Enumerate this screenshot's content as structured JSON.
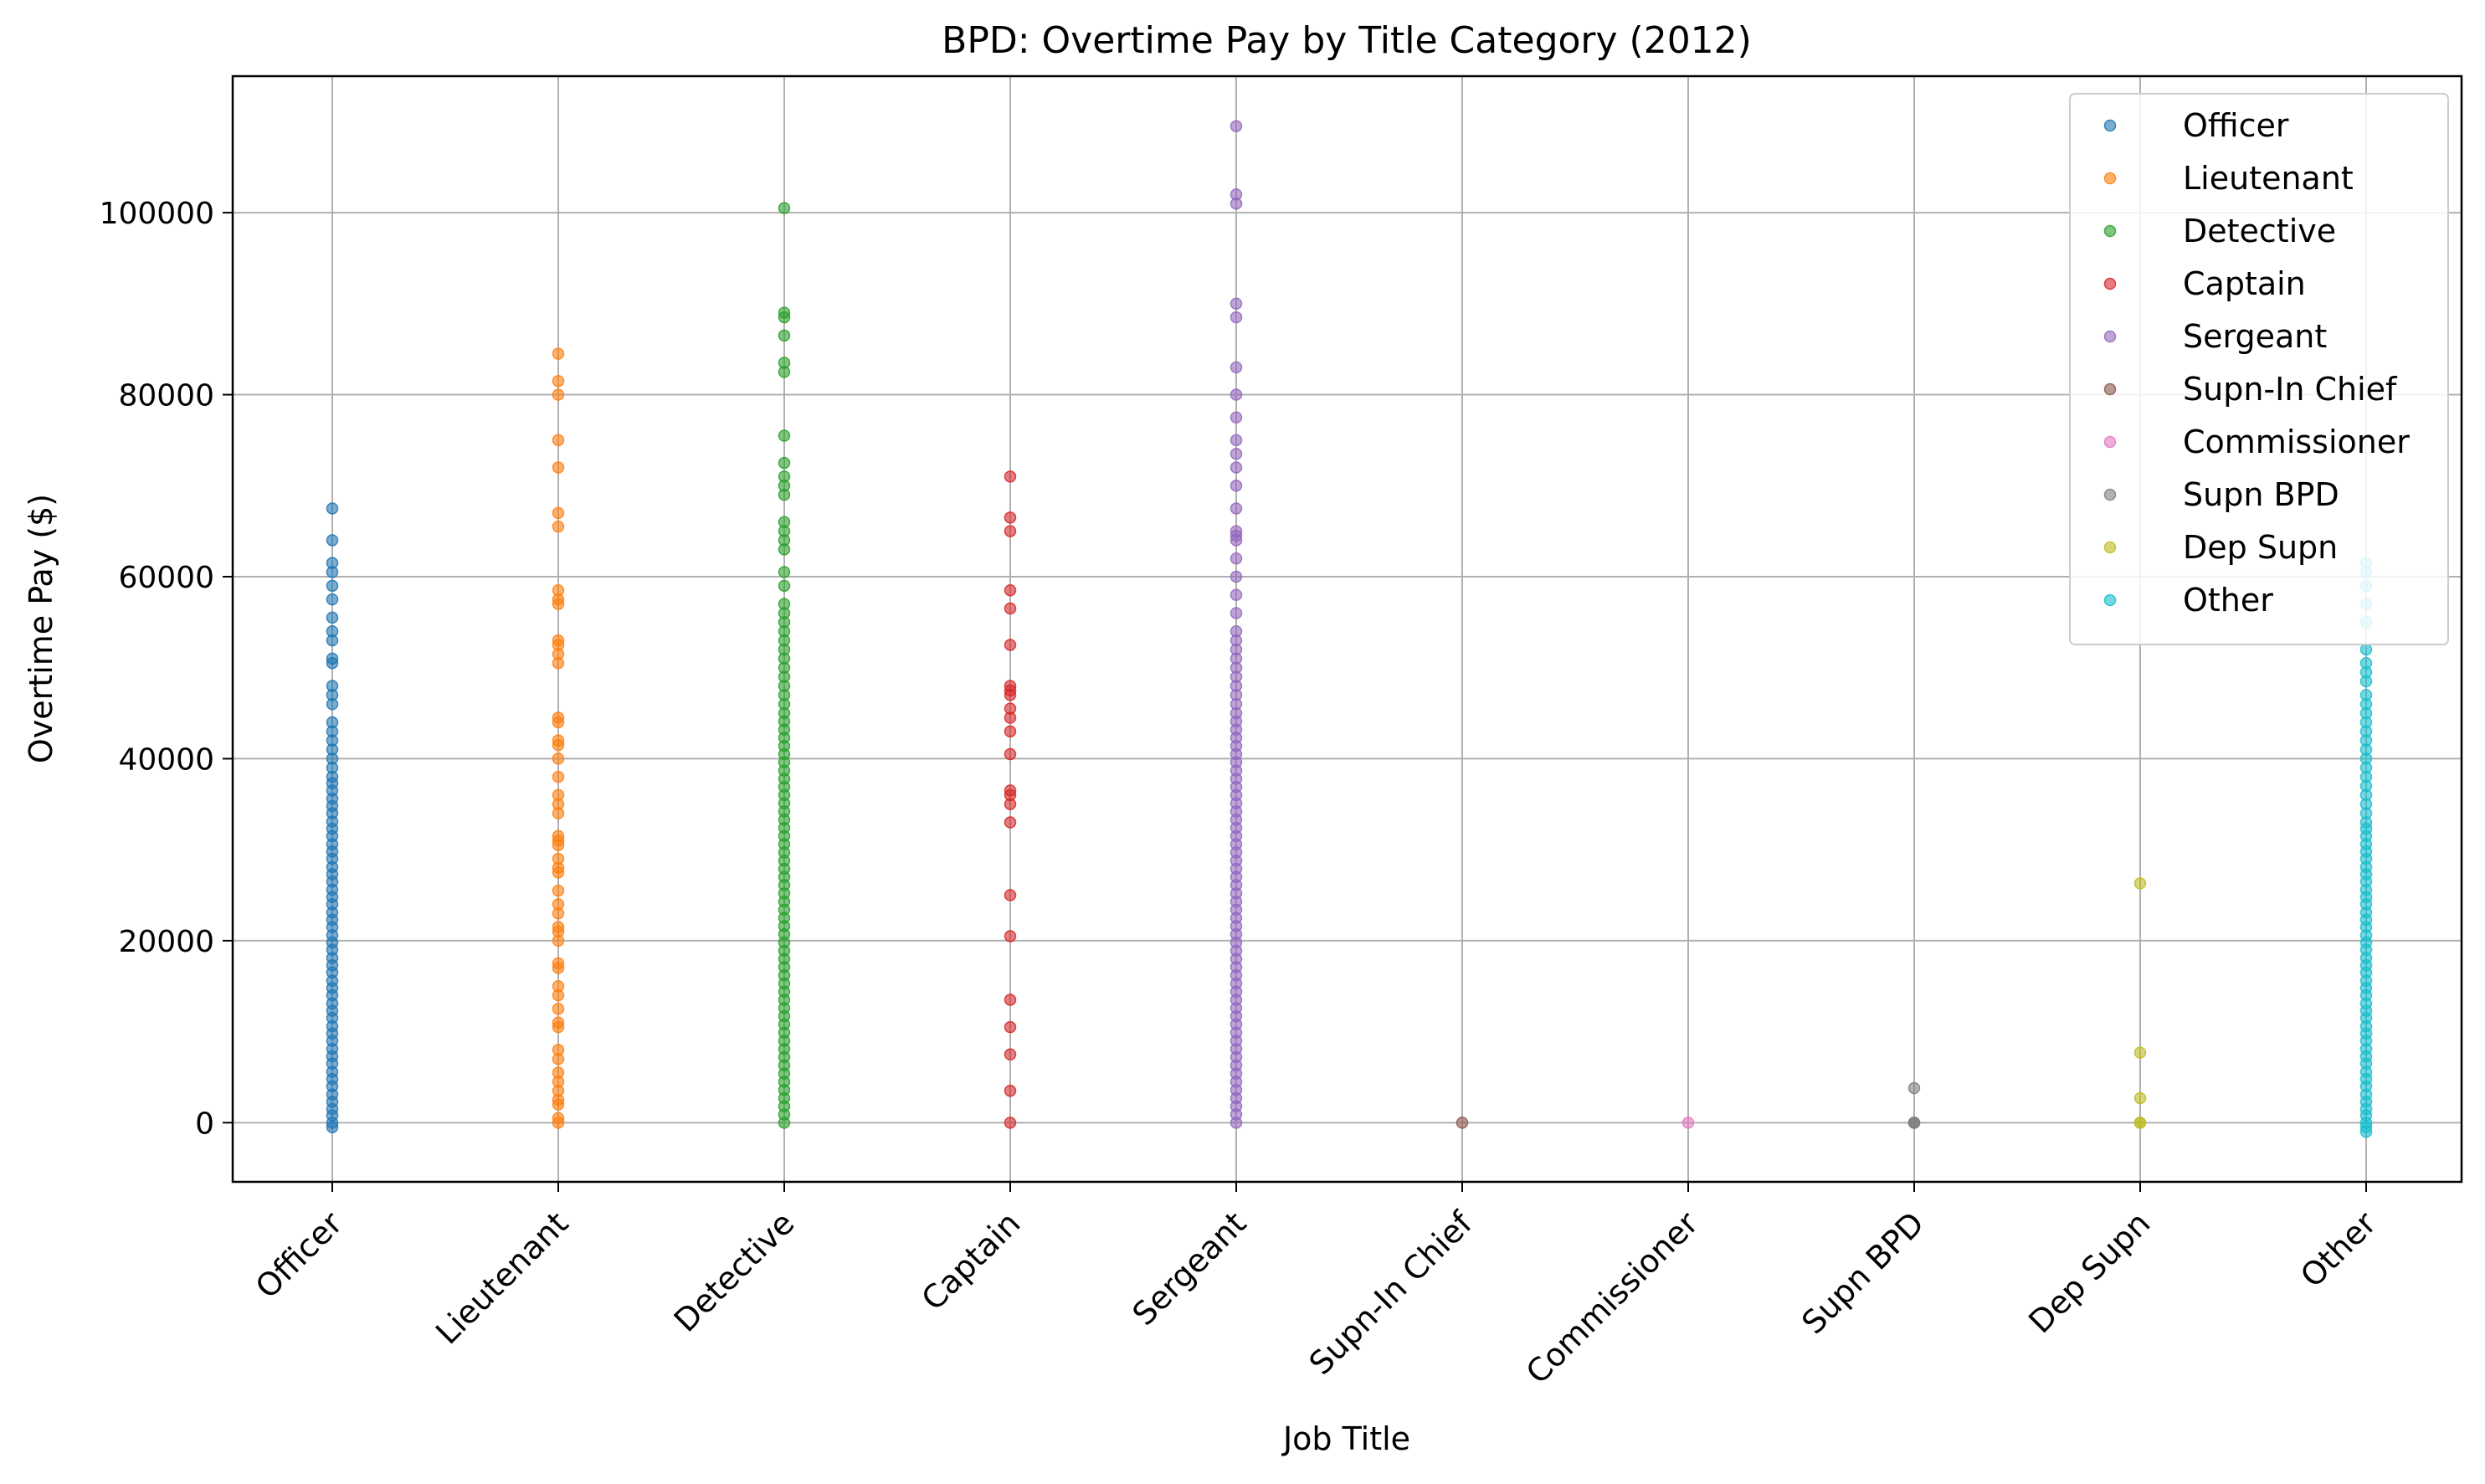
{
  "chart_data": {
    "type": "scatter",
    "title": "BPD: Overtime Pay by Title Category (2012)",
    "xlabel": "Job Title",
    "ylabel": "Overtime Pay ($)",
    "ylim": [
      -6500,
      115000
    ],
    "yticks": [
      0,
      20000,
      40000,
      60000,
      80000,
      100000
    ],
    "grid": true,
    "legend_position": "top-right",
    "categories": [
      "Officer",
      "Lieutenant",
      "Detective",
      "Captain",
      "Sergeant",
      "Supn-In Chief",
      "Commissioner",
      "Supn BPD",
      "Dep Supn",
      "Other"
    ],
    "series": [
      {
        "name": "Officer",
        "color": "#1f77b4",
        "values": [
          -500,
          0,
          800,
          1500,
          2300,
          3100,
          4000,
          4800,
          5600,
          6500,
          7300,
          8100,
          9000,
          9800,
          10600,
          11500,
          12300,
          13100,
          14000,
          14800,
          15600,
          16500,
          17300,
          18100,
          19000,
          19800,
          20600,
          21500,
          22300,
          23100,
          24000,
          24800,
          25600,
          26500,
          27300,
          28100,
          29000,
          29800,
          30600,
          31500,
          32300,
          33100,
          34000,
          34800,
          35600,
          36500,
          37300,
          38000,
          39000,
          40000,
          41000,
          42000,
          43000,
          44000,
          46000,
          47000,
          48000,
          50500,
          51000,
          53000,
          54000,
          55500,
          57500,
          59000,
          60500,
          61500,
          64000,
          67500
        ]
      },
      {
        "name": "Lieutenant",
        "color": "#ff7f0e",
        "values": [
          0,
          500,
          2000,
          2500,
          3500,
          4500,
          5500,
          7000,
          8000,
          10500,
          11000,
          12500,
          14000,
          15000,
          17000,
          17500,
          20000,
          21000,
          21500,
          23000,
          24000,
          25500,
          27500,
          28000,
          29000,
          30500,
          31000,
          31500,
          34000,
          35000,
          36000,
          38000,
          40000,
          41500,
          42000,
          44000,
          44500,
          50500,
          51500,
          52500,
          53000,
          57000,
          57500,
          58500,
          65500,
          67000,
          72000,
          75000,
          80000,
          81500,
          84500
        ]
      },
      {
        "name": "Detective",
        "color": "#2ca02c",
        "values": [
          0,
          900,
          1800,
          2700,
          3600,
          4500,
          5400,
          6300,
          7200,
          8100,
          9000,
          9900,
          10800,
          11700,
          12600,
          13500,
          14400,
          15300,
          16200,
          17100,
          18000,
          18900,
          19800,
          20700,
          21600,
          22500,
          23400,
          24300,
          25200,
          26100,
          27000,
          27900,
          28800,
          29700,
          30600,
          31500,
          32400,
          33300,
          34200,
          35100,
          36000,
          36900,
          37800,
          38700,
          39600,
          40500,
          41400,
          42300,
          43200,
          44100,
          45000,
          46000,
          47000,
          48000,
          49000,
          50000,
          51000,
          52000,
          53000,
          54000,
          55000,
          56000,
          57000,
          59000,
          60500,
          63000,
          64000,
          65000,
          66000,
          69000,
          70000,
          71000,
          72500,
          75500,
          82500,
          83500,
          86500,
          88500,
          89000,
          100500
        ]
      },
      {
        "name": "Captain",
        "color": "#d62728",
        "values": [
          0,
          3500,
          7500,
          10500,
          13500,
          20500,
          25000,
          33000,
          35000,
          36000,
          36500,
          40500,
          43000,
          44500,
          45500,
          47000,
          47500,
          48000,
          52500,
          56500,
          58500,
          65000,
          66500,
          71000
        ]
      },
      {
        "name": "Sergeant",
        "color": "#9467bd",
        "values": [
          0,
          900,
          1800,
          2700,
          3600,
          4500,
          5400,
          6300,
          7200,
          8100,
          9000,
          9900,
          10800,
          11700,
          12600,
          13500,
          14400,
          15300,
          16200,
          17100,
          18000,
          18900,
          19800,
          20700,
          21600,
          22500,
          23400,
          24300,
          25200,
          26100,
          27000,
          27900,
          28800,
          29700,
          30600,
          31500,
          32400,
          33300,
          34200,
          35100,
          36000,
          36900,
          37800,
          38700,
          39600,
          40500,
          41400,
          42300,
          43200,
          44100,
          45000,
          46000,
          47000,
          48000,
          49000,
          50000,
          51000,
          52000,
          53000,
          54000,
          56000,
          58000,
          60000,
          62000,
          64000,
          64500,
          65000,
          67500,
          70000,
          72000,
          73500,
          75000,
          77500,
          80000,
          83000,
          88500,
          90000,
          101000,
          102000,
          109500
        ]
      },
      {
        "name": "Supn-In Chief",
        "color": "#8c564b",
        "values": [
          0
        ]
      },
      {
        "name": "Commissioner",
        "color": "#e377c2",
        "values": [
          0
        ]
      },
      {
        "name": "Supn BPD",
        "color": "#7f7f7f",
        "values": [
          0,
          0,
          0,
          3800
        ]
      },
      {
        "name": "Dep Supn",
        "color": "#bcbd22",
        "values": [
          0,
          0,
          2700,
          7700,
          26300
        ]
      },
      {
        "name": "Other",
        "color": "#17becf",
        "values": [
          -1000,
          -500,
          0,
          800,
          1500,
          2300,
          3100,
          4000,
          4800,
          5600,
          6500,
          7300,
          8100,
          9000,
          9800,
          10600,
          11500,
          12300,
          13100,
          14000,
          14800,
          15600,
          16500,
          17300,
          18100,
          19000,
          19800,
          20600,
          21500,
          22300,
          23100,
          24000,
          24800,
          25600,
          26500,
          27300,
          28100,
          29000,
          29800,
          30600,
          31500,
          32300,
          33000,
          34000,
          35000,
          36000,
          37000,
          38000,
          39000,
          40000,
          41000,
          42000,
          43000,
          44000,
          45000,
          46000,
          47000,
          48500,
          49500,
          50500,
          52000,
          55000,
          57000,
          59000,
          60500,
          61500
        ]
      }
    ]
  }
}
